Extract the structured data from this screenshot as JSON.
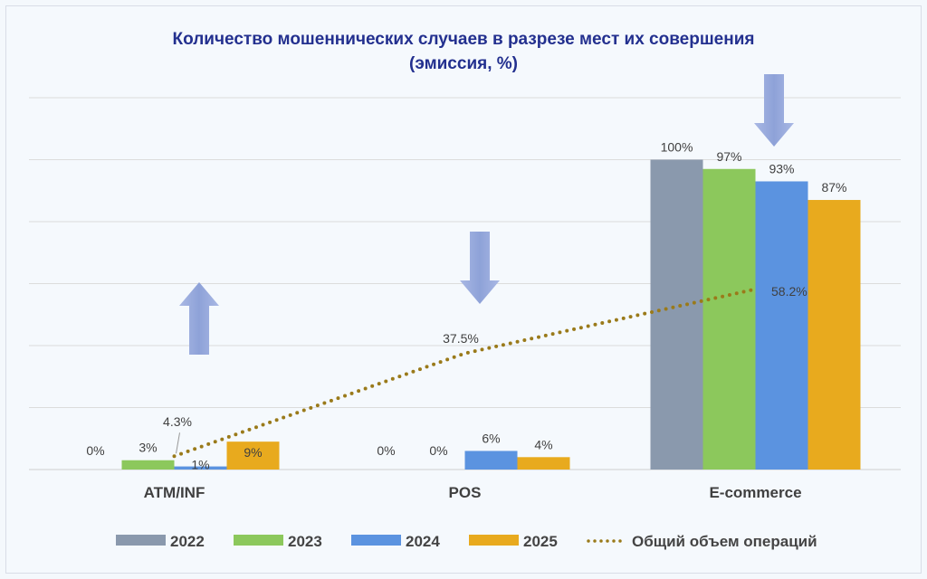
{
  "chart_data": {
    "type": "bar",
    "title": "Количество мошеннических случаев в разрезе мест их совершения",
    "subtitle": "(эмиссия, %)",
    "categories": [
      "ATM/INF",
      "POS",
      "E-commerce"
    ],
    "ylim": [
      0,
      120
    ],
    "grid": true,
    "legend": "bottom",
    "series": [
      {
        "name": "2022",
        "color": "#8a99ad",
        "values": [
          0,
          0,
          100
        ],
        "labels": [
          "0%",
          "0%",
          "100%"
        ]
      },
      {
        "name": "2023",
        "color": "#8cc85c",
        "values": [
          3,
          0,
          97
        ],
        "labels": [
          "3%",
          "0%",
          "97%"
        ]
      },
      {
        "name": "2024",
        "color": "#5b93e0",
        "values": [
          1,
          6,
          93
        ],
        "labels": [
          "1%",
          "6%",
          "93%"
        ]
      },
      {
        "name": "2025",
        "color": "#e8aa1e",
        "values": [
          9,
          4,
          87
        ],
        "labels": [
          "9%",
          "4%",
          "87%"
        ]
      }
    ],
    "line_series": {
      "name": "Общий объем операций",
      "color": "#9a7a1a",
      "style": "dotted",
      "values": [
        4.3,
        37.5,
        58.2
      ],
      "labels": [
        "4.3%",
        "37.5%",
        "58.2%"
      ]
    },
    "trend_arrows": [
      {
        "category": "ATM/INF",
        "direction": "up"
      },
      {
        "category": "POS",
        "direction": "down"
      },
      {
        "category": "E-commerce",
        "direction": "down"
      }
    ],
    "arrow_color": "#8ea2d8"
  }
}
